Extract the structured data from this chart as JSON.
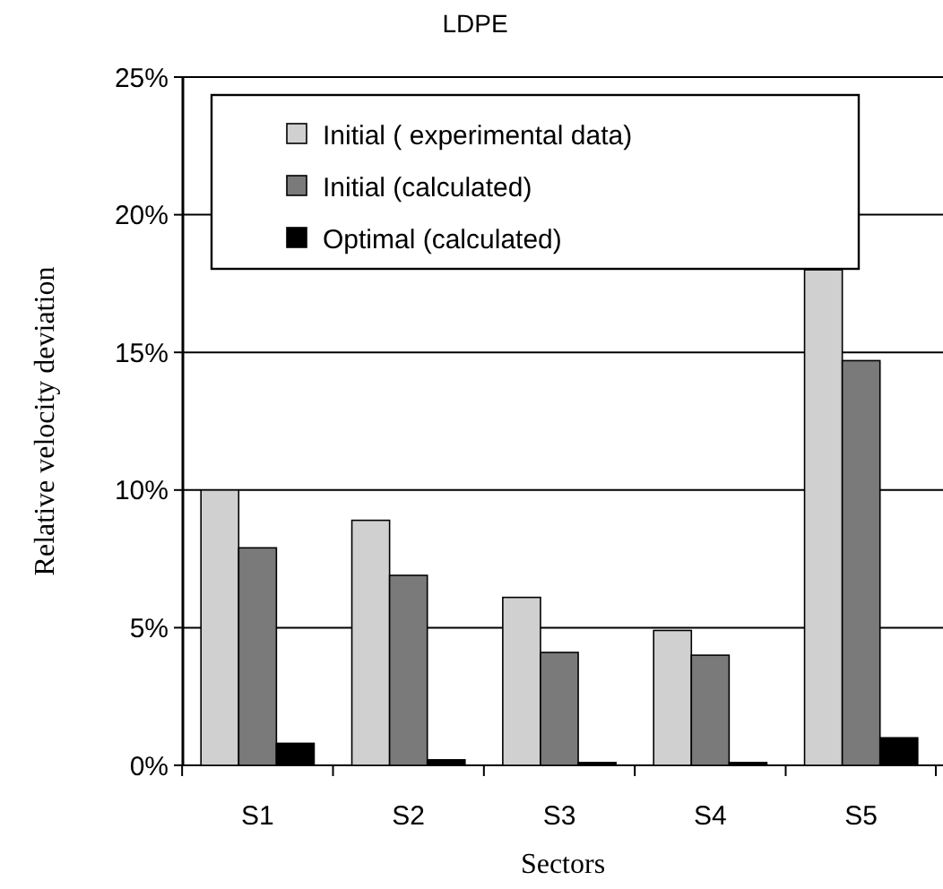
{
  "chart_data": {
    "type": "bar",
    "title": "LDPE",
    "xlabel": "Sectors",
    "ylabel": "Relative velocity deviation",
    "categories": [
      "S1",
      "S2",
      "S3",
      "S4",
      "S5"
    ],
    "series": [
      {
        "name": "Initial ( experimental data)",
        "color": "#d0d0d0",
        "values": [
          10,
          8.9,
          6.1,
          4.9,
          18
        ]
      },
      {
        "name": "Initial (calculated)",
        "color": "#7a7a7a",
        "values": [
          7.9,
          6.9,
          4.1,
          4.0,
          14.7
        ]
      },
      {
        "name": "Optimal (calculated)",
        "color": "#000000",
        "values": [
          0.8,
          0.2,
          0.1,
          0.1,
          1.0
        ]
      }
    ],
    "ylim": [
      0,
      25
    ],
    "yticks": [
      {
        "value": 0,
        "label": "0%"
      },
      {
        "value": 5,
        "label": "5%"
      },
      {
        "value": 10,
        "label": "10%"
      },
      {
        "value": 15,
        "label": "15%"
      },
      {
        "value": 20,
        "label": "20%"
      },
      {
        "value": 25,
        "label": "25%"
      }
    ],
    "grid": "y",
    "legend": "top"
  }
}
